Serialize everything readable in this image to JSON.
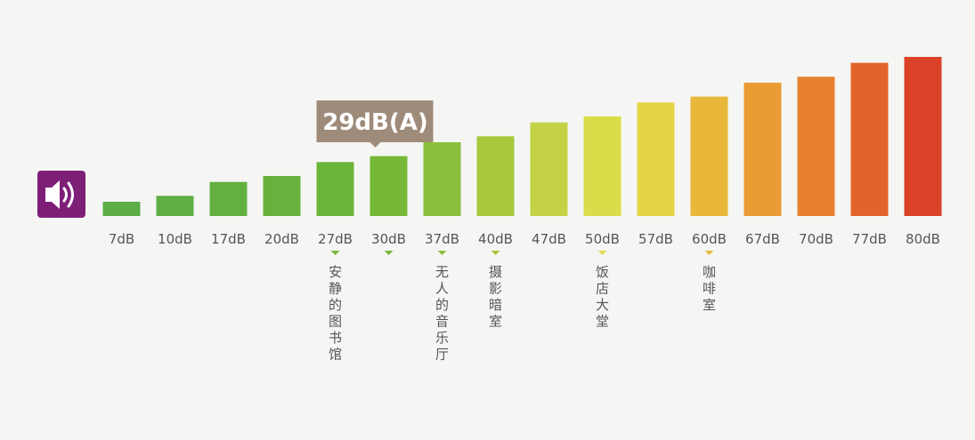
{
  "chart_data": {
    "type": "bar",
    "categories": [
      "7dB",
      "10dB",
      "17dB",
      "20dB",
      "27dB",
      "30dB",
      "37dB",
      "40dB",
      "47dB",
      "50dB",
      "57dB",
      "60dB",
      "67dB",
      "70dB",
      "77dB",
      "80dB"
    ],
    "values": [
      7,
      10,
      17,
      20,
      27,
      30,
      37,
      40,
      47,
      50,
      57,
      60,
      67,
      70,
      77,
      80
    ],
    "ylim": [
      0,
      80
    ],
    "grid": false,
    "legend": "none",
    "bar_colors": [
      "#5cad46",
      "#5fae43",
      "#63b040",
      "#67b13c",
      "#6db43a",
      "#76b838",
      "#89bf3a",
      "#a8c83c",
      "#c4d246",
      "#dcdc4a",
      "#e5d445",
      "#e9b83a",
      "#e99c33",
      "#e7812f",
      "#e2642b",
      "#da4327"
    ],
    "annotations": [
      {
        "category": "27dB",
        "label": "安静的图书馆",
        "marker_color": "#7cb73d"
      },
      {
        "category": "37dB",
        "label": "无人的音乐厅",
        "marker_color": "#8abf3d"
      },
      {
        "category": "40dB",
        "label": "摄影暗室",
        "marker_color": "#a7c73f"
      },
      {
        "category": "50dB",
        "label": "饭店大堂",
        "marker_color": "#e0dc55"
      },
      {
        "category": "60dB",
        "label": "咖啡室",
        "marker_color": "#e9b83a"
      }
    ],
    "callout": {
      "category": "30dB",
      "text": "29dB(A)",
      "color": "#9f8b79"
    },
    "extra_markers": [
      {
        "category": "30dB",
        "marker_color": "#7cb73d"
      }
    ]
  },
  "icons": {
    "speaker": "speaker-icon",
    "speaker_bg": "#7e1f77"
  }
}
